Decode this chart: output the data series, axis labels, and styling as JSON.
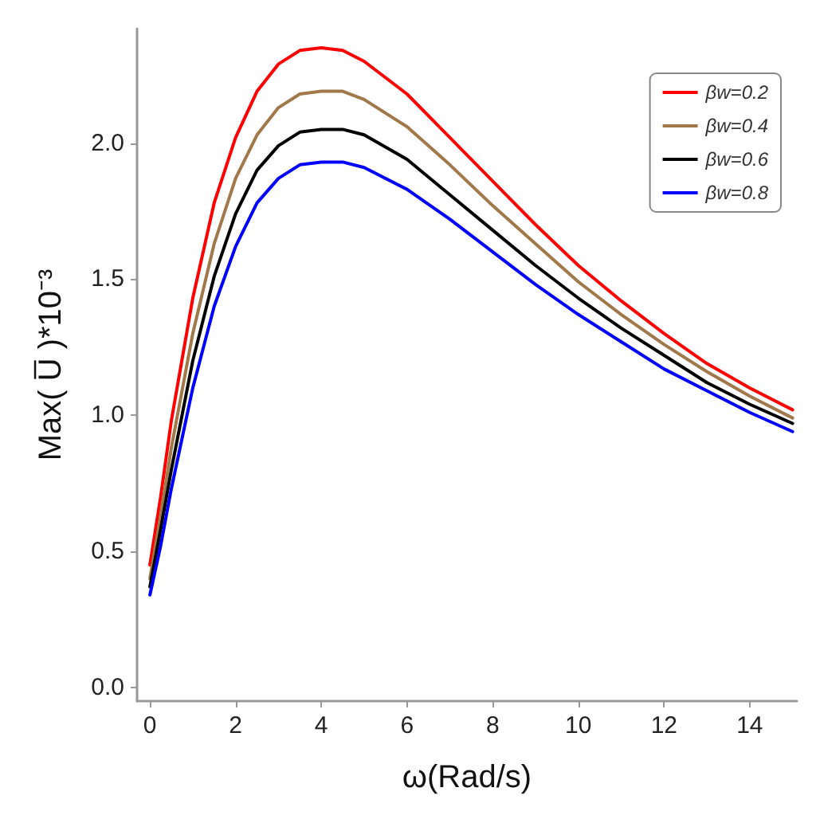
{
  "chart_data": {
    "type": "line",
    "xlabel": "ω(Rad/s)",
    "ylabel": "Max( U̅ )*10⁻³",
    "x": [
      0,
      0.25,
      0.5,
      1,
      1.5,
      2,
      2.5,
      3,
      3.5,
      4,
      4.5,
      5,
      6,
      7,
      8,
      9,
      10,
      11,
      12,
      13,
      14,
      15
    ],
    "series": [
      {
        "name": "βw=0.2",
        "color": "#ff0000",
        "values": [
          0.45,
          0.7,
          0.98,
          1.43,
          1.78,
          2.02,
          2.19,
          2.29,
          2.34,
          2.35,
          2.34,
          2.3,
          2.18,
          2.02,
          1.86,
          1.7,
          1.55,
          1.42,
          1.3,
          1.19,
          1.1,
          1.02
        ]
      },
      {
        "name": "βw=0.4",
        "color": "#a0784a",
        "values": [
          0.4,
          0.63,
          0.88,
          1.3,
          1.63,
          1.87,
          2.03,
          2.13,
          2.18,
          2.19,
          2.19,
          2.16,
          2.06,
          1.92,
          1.77,
          1.63,
          1.49,
          1.37,
          1.26,
          1.16,
          1.07,
          0.99
        ]
      },
      {
        "name": "βw=0.6",
        "color": "#000000",
        "values": [
          0.37,
          0.58,
          0.8,
          1.2,
          1.51,
          1.74,
          1.9,
          1.99,
          2.04,
          2.05,
          2.05,
          2.03,
          1.94,
          1.81,
          1.68,
          1.55,
          1.43,
          1.32,
          1.22,
          1.12,
          1.04,
          0.97
        ]
      },
      {
        "name": "βw=0.8",
        "color": "#0000ff",
        "values": [
          0.34,
          0.52,
          0.73,
          1.1,
          1.4,
          1.62,
          1.78,
          1.87,
          1.92,
          1.93,
          1.93,
          1.91,
          1.83,
          1.72,
          1.6,
          1.48,
          1.37,
          1.27,
          1.17,
          1.09,
          1.01,
          0.94
        ]
      }
    ],
    "xlim": [
      -0.3,
      15.1
    ],
    "ylim": [
      -0.05,
      2.42
    ],
    "xticks": [
      0,
      2,
      4,
      6,
      8,
      10,
      12,
      14
    ],
    "yticks": [
      {
        "value": 0,
        "label": "0.0"
      },
      {
        "value": 0.5,
        "label": "0.5"
      },
      {
        "value": 1,
        "label": "1.0"
      },
      {
        "value": 1.5,
        "label": "1.5"
      },
      {
        "value": 2,
        "label": "2.0"
      }
    ],
    "grid": false,
    "legend": "top right",
    "marker": "none",
    "line_style": "solid"
  }
}
